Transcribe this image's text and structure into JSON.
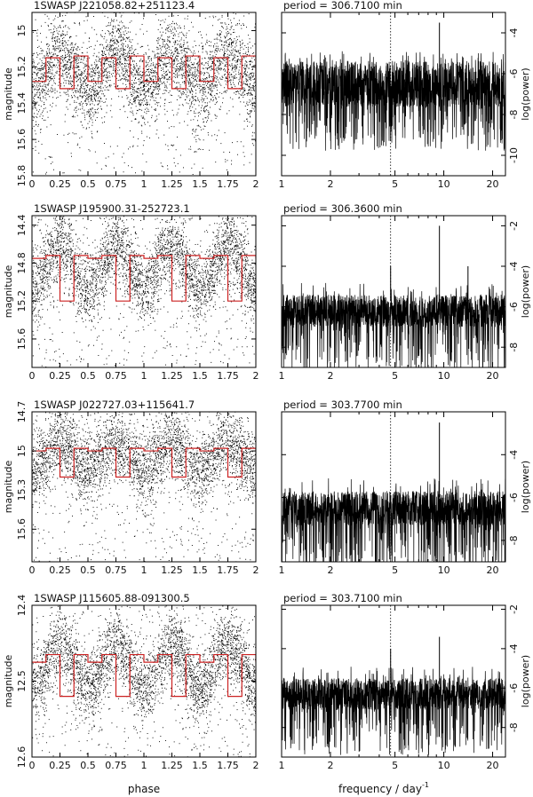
{
  "figure": {
    "x_label_left": "phase",
    "x_label_right": "frequency / day",
    "x_label_right_sup": "-1",
    "y_label_left": "magnitude",
    "y_label_right": "log(power)"
  },
  "chart_data": [
    {
      "type": "scatter",
      "panel": "row1-lightcurve",
      "title": "1SWASP J221058.82+251123.4",
      "xlabel": "",
      "ylabel": "magnitude",
      "xlim": [
        0,
        2
      ],
      "ylim": [
        15.8,
        14.9
      ],
      "y_inverted": true,
      "x_ticks": [
        0,
        0.25,
        0.5,
        0.75,
        1,
        1.25,
        1.5,
        1.75,
        2
      ],
      "y_ticks": [
        15,
        15.2,
        15.4,
        15.6,
        15.8
      ],
      "series": [
        {
          "name": "",
          "kind": "points",
          "color": "#000000",
          "note_values": "dense cloud of points around fitted curve"
        },
        {
          "name": "",
          "kind": "step-line",
          "color": "#cc2222",
          "x": [
            0,
            0.125,
            0.25,
            0.375,
            0.5,
            0.625,
            0.75,
            0.875,
            1,
            1.125,
            1.25,
            1.375,
            1.5,
            1.625,
            1.75,
            1.875,
            2
          ],
          "y": [
            15.28,
            15.15,
            15.32,
            15.14,
            15.28,
            15.15,
            15.32,
            15.14,
            15.28,
            15.15,
            15.32,
            15.14,
            15.28,
            15.15,
            15.32,
            15.14,
            15.28
          ]
        }
      ]
    },
    {
      "type": "line",
      "panel": "row1-periodogram",
      "title": "period = 306.7100 min",
      "xlim": [
        1,
        24
      ],
      "x_scale": "log",
      "ylim": [
        -11,
        -3
      ],
      "y_axis_side": "right",
      "x_ticks": [
        1,
        2,
        5,
        10,
        20
      ],
      "y_ticks": [
        -4,
        -6,
        -8,
        -10
      ],
      "reference_line_x": 4.7,
      "peaks": [
        {
          "x": 9.4,
          "y": -3.5
        }
      ],
      "noise_band": [
        -7.2,
        -5.8
      ]
    },
    {
      "type": "scatter",
      "panel": "row2-lightcurve",
      "title": "1SWASP J195900.31-252723.1",
      "ylabel": "magnitude",
      "xlim": [
        0,
        2
      ],
      "ylim": [
        15.9,
        14.3
      ],
      "y_inverted": true,
      "x_ticks": [
        0,
        0.25,
        0.5,
        0.75,
        1,
        1.25,
        1.5,
        1.75,
        2
      ],
      "y_ticks": [
        14.4,
        14.8,
        15.2,
        15.6
      ],
      "series": [
        {
          "name": "",
          "kind": "points",
          "color": "#000000"
        },
        {
          "name": "",
          "kind": "step-line",
          "color": "#cc2222",
          "x": [
            0,
            0.125,
            0.25,
            0.375,
            0.5,
            0.625,
            0.75,
            0.875,
            1,
            1.125,
            1.25,
            1.375,
            1.5,
            1.625,
            1.75,
            1.875,
            2
          ],
          "y": [
            14.75,
            14.72,
            15.2,
            14.72,
            14.75,
            14.72,
            15.2,
            14.72,
            14.75,
            14.72,
            15.2,
            14.72,
            14.75,
            14.72,
            15.2,
            14.72,
            14.75
          ]
        }
      ]
    },
    {
      "type": "line",
      "panel": "row2-periodogram",
      "title": "period = 306.3600 min",
      "xlim": [
        1,
        24
      ],
      "x_scale": "log",
      "ylim": [
        -9,
        -1.5
      ],
      "y_axis_side": "right",
      "x_ticks": [
        1,
        2,
        5,
        10,
        20
      ],
      "y_ticks": [
        -2,
        -4,
        -6,
        -8
      ],
      "reference_line_x": 4.7,
      "peaks": [
        {
          "x": 9.4,
          "y": -2.0
        },
        {
          "x": 4.7,
          "y": -4.0
        },
        {
          "x": 14.1,
          "y": -4.0
        }
      ],
      "noise_band": [
        -6.7,
        -5.7
      ]
    },
    {
      "type": "scatter",
      "panel": "row3-lightcurve",
      "title": "1SWASP J022727.03+115641.7",
      "ylabel": "magnitude",
      "xlim": [
        0,
        2
      ],
      "ylim": [
        15.85,
        14.7
      ],
      "y_inverted": true,
      "x_ticks": [
        0,
        0.25,
        0.5,
        0.75,
        1,
        1.25,
        1.5,
        1.75,
        2
      ],
      "y_ticks": [
        14.7,
        15,
        15.3,
        15.6
      ],
      "series": [
        {
          "name": "",
          "kind": "points",
          "color": "#000000"
        },
        {
          "name": "",
          "kind": "step-line",
          "color": "#cc2222",
          "x": [
            0,
            0.125,
            0.25,
            0.375,
            0.5,
            0.625,
            0.75,
            0.875,
            1,
            1.125,
            1.25,
            1.375,
            1.5,
            1.625,
            1.75,
            1.875,
            2
          ],
          "y": [
            15.0,
            14.98,
            15.2,
            14.98,
            15.0,
            14.98,
            15.2,
            14.98,
            15.0,
            14.98,
            15.2,
            14.98,
            15.0,
            14.98,
            15.2,
            14.98,
            15.0
          ]
        }
      ]
    },
    {
      "type": "line",
      "panel": "row3-periodogram",
      "title": "period = 303.7700 min",
      "xlim": [
        1,
        24
      ],
      "x_scale": "log",
      "ylim": [
        -9,
        -2
      ],
      "y_axis_side": "right",
      "x_ticks": [
        1,
        2,
        5,
        10,
        20
      ],
      "y_ticks": [
        -4,
        -6,
        -8
      ],
      "reference_line_x": 4.7,
      "peaks": [
        {
          "x": 9.4,
          "y": -2.5
        }
      ],
      "noise_band": [
        -7.0,
        -6.0
      ]
    },
    {
      "type": "scatter",
      "panel": "row4-lightcurve",
      "title": "1SWASP J115605.88-091300.5",
      "ylabel": "magnitude",
      "xlim": [
        0,
        2
      ],
      "ylim": [
        12.6,
        12.4
      ],
      "y_inverted": true,
      "x_ticks": [
        0,
        0.25,
        0.5,
        0.75,
        1,
        1.25,
        1.5,
        1.75,
        2
      ],
      "y_ticks": [
        12.4,
        12.5,
        12.6
      ],
      "series": [
        {
          "name": "",
          "kind": "points",
          "color": "#000000"
        },
        {
          "name": "",
          "kind": "step-line",
          "color": "#cc2222",
          "x": [
            0,
            0.125,
            0.25,
            0.375,
            0.5,
            0.625,
            0.75,
            0.875,
            1,
            1.125,
            1.25,
            1.375,
            1.5,
            1.625,
            1.75,
            1.875,
            2
          ],
          "y": [
            12.475,
            12.465,
            12.52,
            12.465,
            12.475,
            12.465,
            12.52,
            12.465,
            12.475,
            12.465,
            12.52,
            12.465,
            12.475,
            12.465,
            12.52,
            12.465,
            12.475
          ]
        }
      ]
    },
    {
      "type": "line",
      "panel": "row4-periodogram",
      "title": "period = 303.7100 min",
      "xlim": [
        1,
        24
      ],
      "x_scale": "log",
      "ylim": [
        -9.5,
        -1.8
      ],
      "y_axis_side": "right",
      "x_ticks": [
        1,
        2,
        5,
        10,
        20
      ],
      "y_ticks": [
        -2,
        -4,
        -6,
        -8
      ],
      "reference_line_x": 4.7,
      "peaks": [
        {
          "x": 9.4,
          "y": -3.4
        },
        {
          "x": 4.7,
          "y": -4.0
        }
      ],
      "noise_band": [
        -6.8,
        -5.8
      ]
    }
  ]
}
